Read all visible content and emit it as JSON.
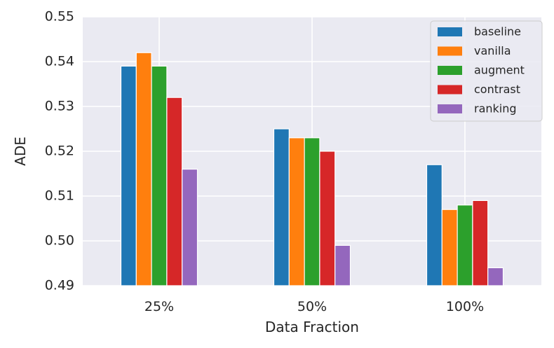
{
  "chart_data": {
    "type": "bar",
    "title": "",
    "xlabel": "Data Fraction",
    "ylabel": "ADE",
    "categories": [
      "25%",
      "50%",
      "100%"
    ],
    "series": [
      {
        "name": "baseline",
        "values": [
          0.539,
          0.525,
          0.517
        ],
        "color": "#1f77b4"
      },
      {
        "name": "vanilla",
        "values": [
          0.542,
          0.523,
          0.507
        ],
        "color": "#ff7f0e"
      },
      {
        "name": "augment",
        "values": [
          0.539,
          0.523,
          0.508
        ],
        "color": "#2ca02c"
      },
      {
        "name": "contrast",
        "values": [
          0.532,
          0.52,
          0.509
        ],
        "color": "#d62728"
      },
      {
        "name": "ranking",
        "values": [
          0.516,
          0.499,
          0.494
        ],
        "color": "#9467bd"
      }
    ],
    "ylim": [
      0.49,
      0.55
    ],
    "yticks": [
      "0.49",
      "0.50",
      "0.51",
      "0.52",
      "0.53",
      "0.54",
      "0.55"
    ],
    "grid": true,
    "legend_position": "top-right",
    "background_color": "#eaeaf2",
    "grid_color": "#ffffff"
  }
}
